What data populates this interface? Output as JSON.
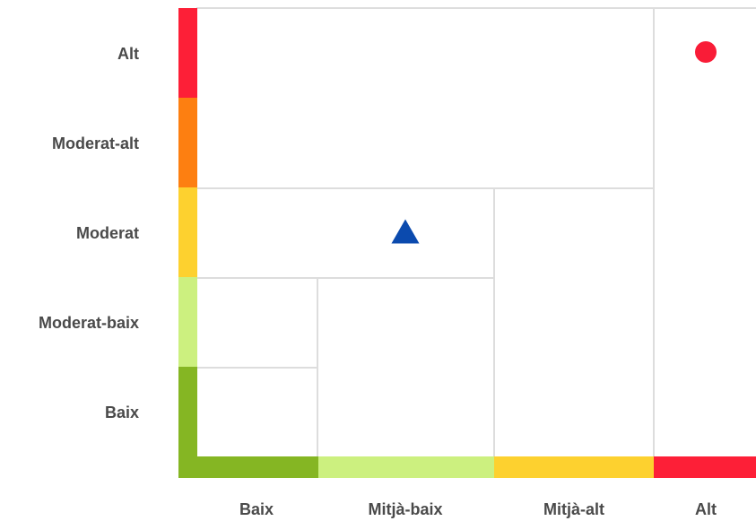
{
  "chart_data": {
    "type": "scatter",
    "title": "",
    "xlabel": "",
    "ylabel": "",
    "x_categories": [
      "Baix",
      "Mitjà-baix",
      "Mitjà-alt",
      "Alt"
    ],
    "y_categories": [
      "Alt",
      "Moderat-alt",
      "Moderat",
      "Moderat-baix",
      "Baix"
    ],
    "x_band_colors": [
      "#85b623",
      "#ccf07f",
      "#fdd12f",
      "#fd1f37"
    ],
    "y_band_colors": [
      "#fd1f37",
      "#fd7f11",
      "#fdd12f",
      "#ccf07f",
      "#85b623"
    ],
    "grid_color": "#dddddd",
    "points": [
      {
        "shape": "circle",
        "color": "#f91c37",
        "x_category": "Alt",
        "y_category": "Alt"
      },
      {
        "shape": "triangle",
        "color": "#0b4aae",
        "x_category": "Mitjà-baix",
        "y_category": "Moderat"
      }
    ]
  }
}
